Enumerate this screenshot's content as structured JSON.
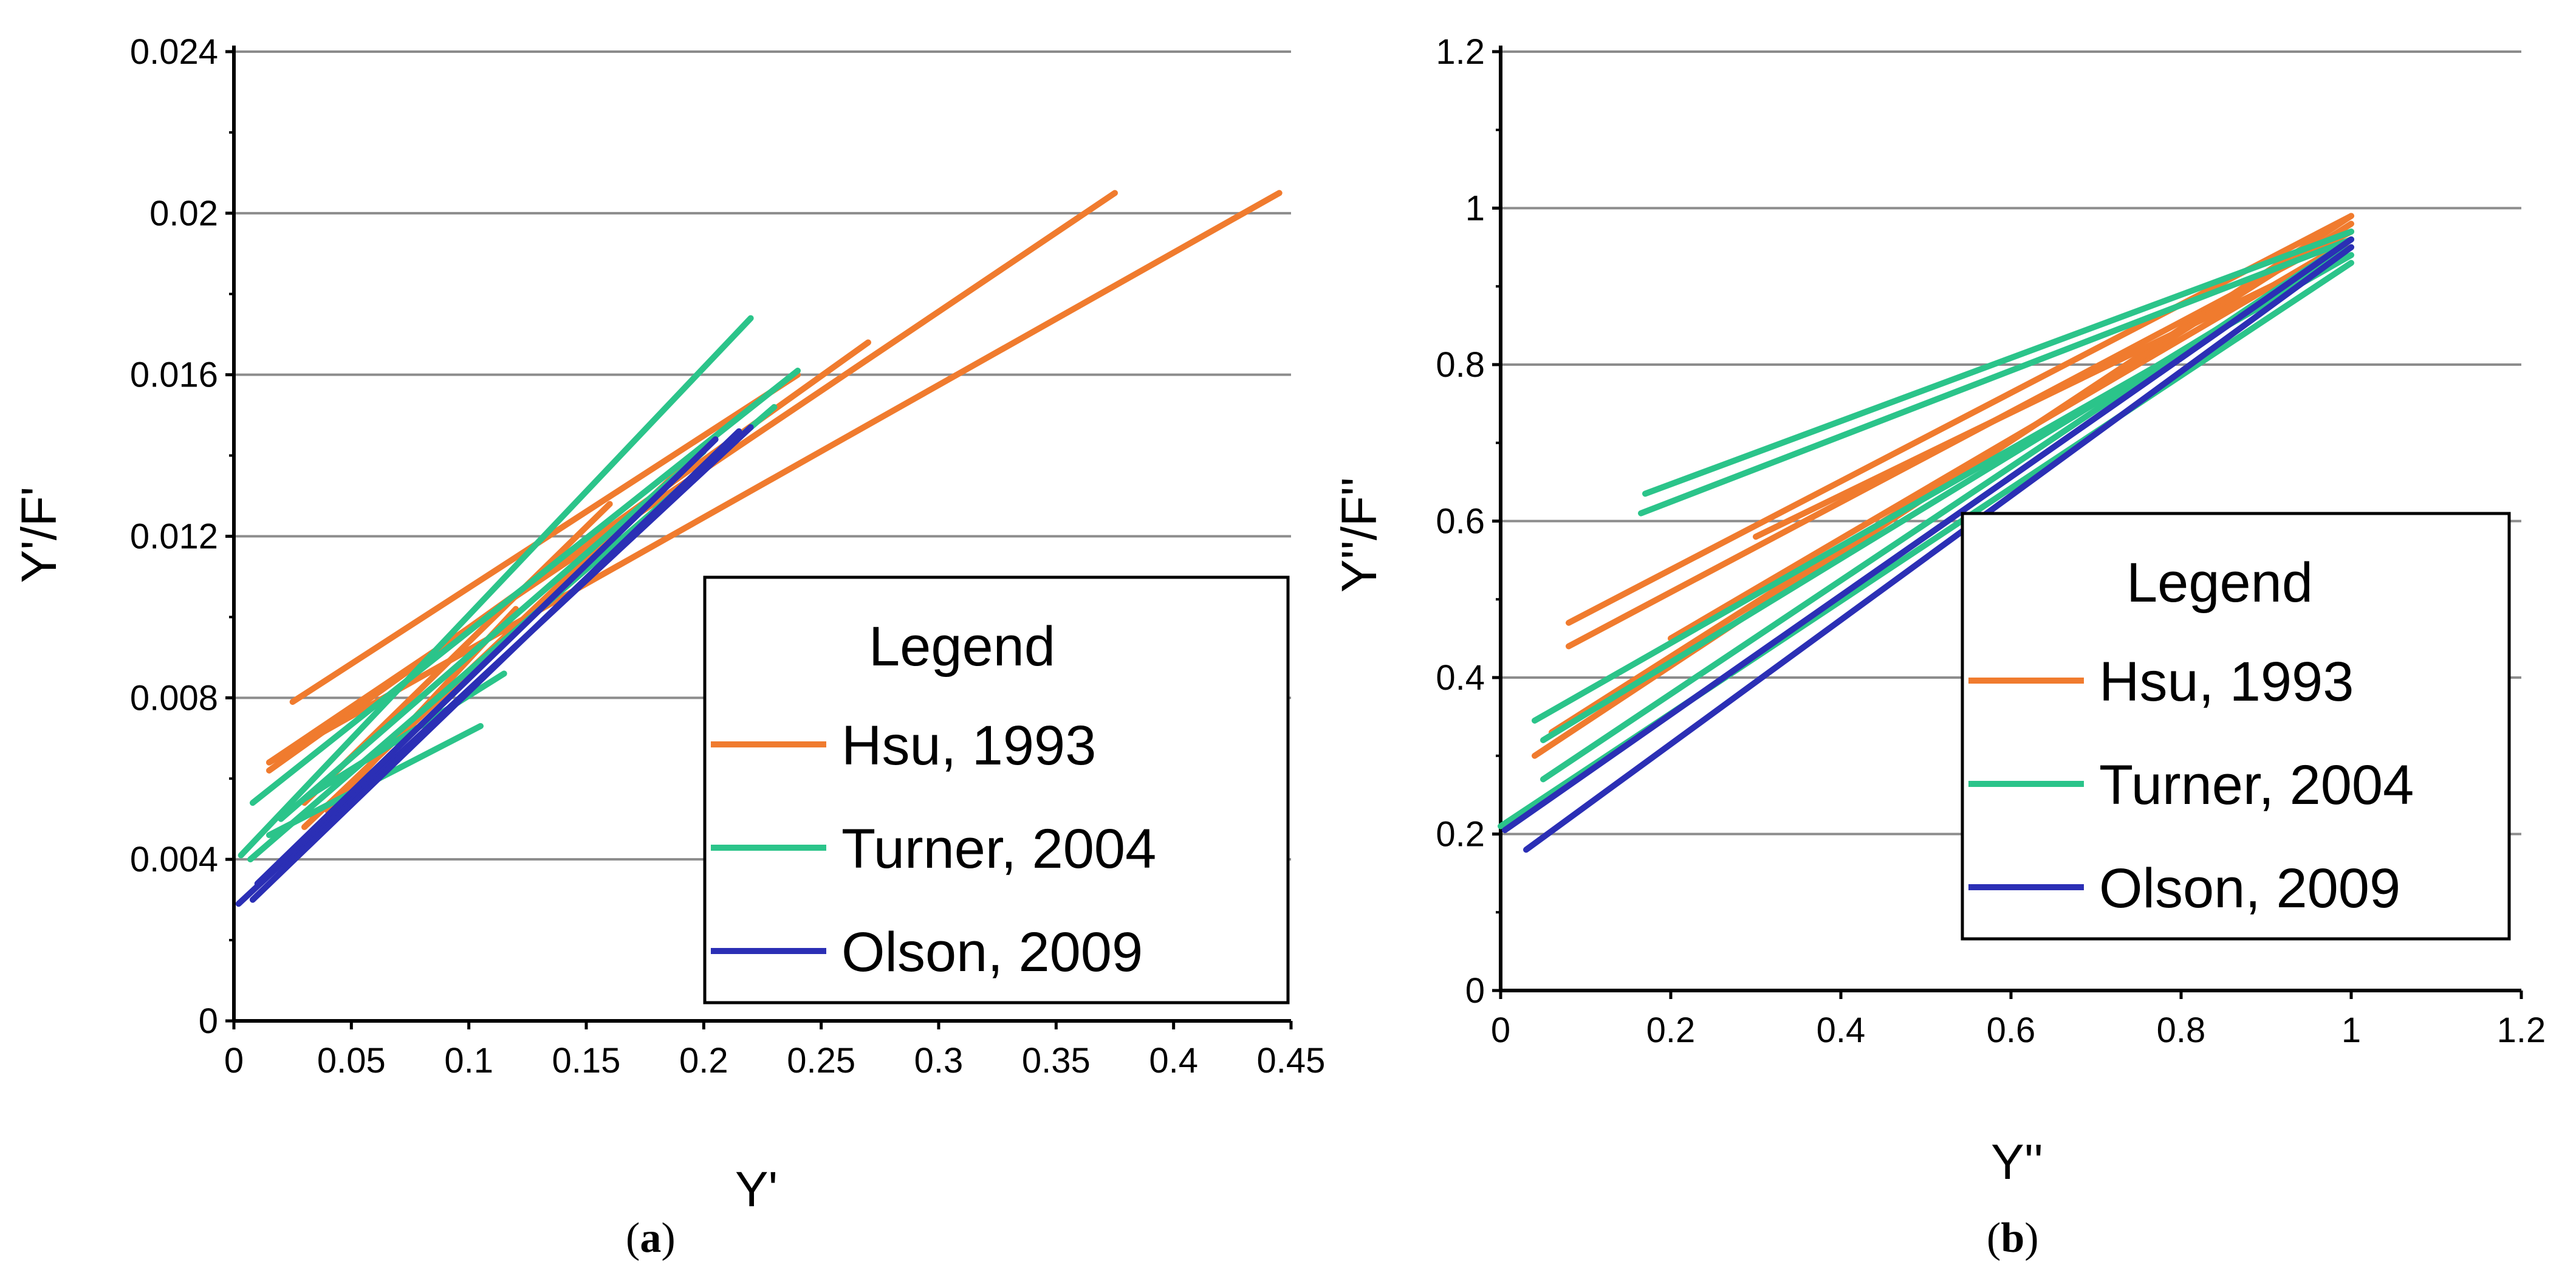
{
  "chart_data": [
    {
      "type": "line",
      "panel": "a",
      "caption": {
        "open": "(",
        "letter": "a",
        "close": ")"
      },
      "xlabel": "Y'",
      "ylabel": "Y'/F'",
      "xlim": [
        0,
        0.45
      ],
      "ylim": [
        0,
        0.024
      ],
      "xticks": [
        "0",
        "0.05",
        "0.1",
        "0.15",
        "0.2",
        "0.25",
        "0.3",
        "0.35",
        "0.4",
        "0.45"
      ],
      "yticks": [
        "0",
        "0.004",
        "0.008",
        "0.012",
        "0.016",
        "0.02",
        "0.024"
      ],
      "grid": "horizontal",
      "legend": {
        "title": "Legend",
        "position": "lower-right",
        "entries": [
          {
            "label": "Hsu, 1993",
            "color": "#F07B2E"
          },
          {
            "label": "Turner, 2004",
            "color": "#2BC48A"
          },
          {
            "label": "Olson, 2009",
            "color": "#2B2FB5"
          }
        ]
      },
      "series": [
        {
          "name": "Hsu, 1993",
          "color": "#F07B2E",
          "segments": [
            [
              [
                0.015,
                0.0062
              ],
              [
                0.27,
                0.0168
              ]
            ],
            [
              [
                0.025,
                0.0079
              ],
              [
                0.24,
                0.016
              ]
            ],
            [
              [
                0.015,
                0.0064
              ],
              [
                0.445,
                0.0205
              ]
            ],
            [
              [
                0.015,
                0.0064
              ],
              [
                0.375,
                0.0205
              ]
            ],
            [
              [
                0.03,
                0.0048
              ],
              [
                0.2,
                0.0142
              ]
            ],
            [
              [
                0.03,
                0.0054
              ],
              [
                0.16,
                0.0128
              ]
            ],
            [
              [
                0.04,
                0.0052
              ],
              [
                0.12,
                0.0102
              ]
            ]
          ]
        },
        {
          "name": "Turner, 2004",
          "color": "#2BC48A",
          "segments": [
            [
              [
                0.003,
                0.0041
              ],
              [
                0.22,
                0.0174
              ]
            ],
            [
              [
                0.008,
                0.0054
              ],
              [
                0.24,
                0.0161
              ]
            ],
            [
              [
                0.007,
                0.004
              ],
              [
                0.23,
                0.0152
              ]
            ],
            [
              [
                0.015,
                0.0046
              ],
              [
                0.105,
                0.0073
              ]
            ],
            [
              [
                0.03,
                0.0055
              ],
              [
                0.115,
                0.0086
              ]
            ],
            [
              [
                0.02,
                0.005
              ],
              [
                0.2,
                0.0141
              ]
            ]
          ]
        },
        {
          "name": "Olson, 2009",
          "color": "#2B2FB5",
          "segments": [
            [
              [
                0.002,
                0.0029
              ],
              [
                0.22,
                0.0147
              ]
            ],
            [
              [
                0.008,
                0.003
              ],
              [
                0.215,
                0.0146
              ]
            ],
            [
              [
                0.01,
                0.0034
              ],
              [
                0.205,
                0.0144
              ]
            ]
          ]
        }
      ]
    },
    {
      "type": "line",
      "panel": "b",
      "caption": {
        "open": "(",
        "letter": "b",
        "close": ")"
      },
      "xlabel": "Y''",
      "ylabel": "Y''/F''",
      "xlim": [
        0,
        1.2
      ],
      "ylim": [
        0,
        1.2
      ],
      "xticks": [
        "0",
        "0.2",
        "0.4",
        "0.6",
        "0.8",
        "1",
        "1.2"
      ],
      "yticks": [
        "0",
        "0.2",
        "0.4",
        "0.6",
        "0.8",
        "1",
        "1.2"
      ],
      "grid": "horizontal",
      "legend": {
        "title": "Legend",
        "position": "lower-right",
        "entries": [
          {
            "label": "Hsu, 1993",
            "color": "#F07B2E"
          },
          {
            "label": "Turner, 2004",
            "color": "#2BC48A"
          },
          {
            "label": "Olson, 2009",
            "color": "#2B2FB5"
          }
        ]
      },
      "series": [
        {
          "name": "Hsu, 1993",
          "color": "#F07B2E",
          "segments": [
            [
              [
                0.08,
                0.47
              ],
              [
                1.0,
                0.99
              ]
            ],
            [
              [
                0.08,
                0.44
              ],
              [
                1.0,
                0.97
              ]
            ],
            [
              [
                0.2,
                0.45
              ],
              [
                1.0,
                0.96
              ]
            ],
            [
              [
                0.04,
                0.3
              ],
              [
                1.0,
                0.99
              ]
            ],
            [
              [
                0.06,
                0.33
              ],
              [
                1.0,
                0.98
              ]
            ],
            [
              [
                0.3,
                0.58
              ],
              [
                1.0,
                0.95
              ]
            ]
          ]
        },
        {
          "name": "Turner, 2004",
          "color": "#2BC48A",
          "segments": [
            [
              [
                0.17,
                0.635
              ],
              [
                1.0,
                0.97
              ]
            ],
            [
              [
                0.165,
                0.61
              ],
              [
                1.0,
                0.96
              ]
            ],
            [
              [
                0.04,
                0.345
              ],
              [
                1.0,
                0.94
              ]
            ],
            [
              [
                0.05,
                0.32
              ],
              [
                1.0,
                0.95
              ]
            ],
            [
              [
                0.05,
                0.27
              ],
              [
                1.0,
                0.96
              ]
            ],
            [
              [
                0.0,
                0.21
              ],
              [
                1.0,
                0.93
              ]
            ]
          ]
        },
        {
          "name": "Olson, 2009",
          "color": "#2B2FB5",
          "segments": [
            [
              [
                0.005,
                0.205
              ],
              [
                1.0,
                0.96
              ]
            ],
            [
              [
                0.03,
                0.18
              ],
              [
                1.0,
                0.95
              ]
            ]
          ]
        }
      ]
    }
  ]
}
